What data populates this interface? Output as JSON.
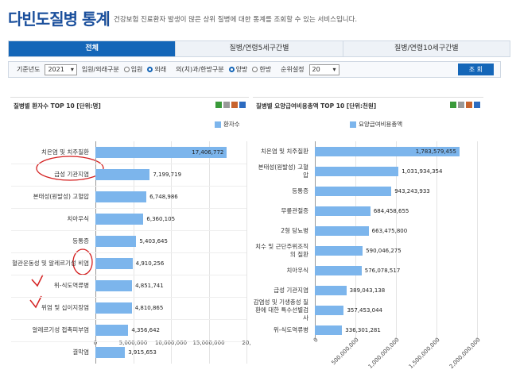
{
  "header": {
    "title": "다빈도질병 통계",
    "description": "건강보험 진료환자 발생이 많은 상위 질병에 대한 통계를 조회할 수 있는 서비스입니다."
  },
  "tabs": [
    "전체",
    "질병/연령5세구간별",
    "질병/연령10세구간별"
  ],
  "filters": {
    "year_label": "기준년도",
    "year": "2021",
    "visit_label": "입원/외래구분",
    "visit_options": [
      "입원",
      "외래"
    ],
    "medical_label": "의(치)과/한방구분",
    "medical_options": [
      "양방",
      "한방"
    ],
    "rank_label": "순위설정",
    "rank": "20",
    "search_button": "조 회"
  },
  "chart_data": [
    {
      "type": "bar",
      "horizontal": true,
      "title": "질병별 환자수 TOP 10 [단위:명]",
      "categories": [
        "치은염 및 치주질환",
        "급성 기관지염",
        "본태성(원발성) 고혈압",
        "치아우식",
        "등통증",
        "혈관운동성 및 알레르기성 비염",
        "위-식도역류병",
        "위염 및 십이지장염",
        "알레르기성 접촉피부염",
        "결막염"
      ],
      "series": [
        {
          "name": "환자수",
          "color": "#7cb5ec",
          "values": [
            17406772,
            7199719,
            6748986,
            6360105,
            5403645,
            4910256,
            4851741,
            4810865,
            4356642,
            3915653
          ],
          "value_labels": [
            "17,406,772",
            "7,199,719",
            "6,748,986",
            "6,360,105",
            "5,403,645",
            "4,910,256",
            "4,851,741",
            "4,810,865",
            "4,356,642",
            "3,915,653"
          ]
        }
      ],
      "xlim": [
        0,
        20000000
      ],
      "xticks": [
        0,
        {
          "value": 5000000,
          "label": "5,000,000"
        },
        {
          "value": 10000000,
          "label": "10,000,000"
        },
        {
          "value": 15000000,
          "label": "15,000,000"
        },
        {
          "value": 20000000,
          "label": "20,"
        }
      ],
      "rotated_ticks": false
    },
    {
      "type": "bar",
      "horizontal": true,
      "title": "질병별 요양급여비용총액 TOP 10 [단위:천원]",
      "categories": [
        "치은염 및 치주질환",
        "본태성(원발성) 고혈압",
        "등통증",
        "무릎관절증",
        "2형 당뇨병",
        "치수 및 근단주위조직의 질환",
        "치아우식",
        "급성 기관지염",
        "감염성 및 기생충성 질환에 대한 특수선별검사",
        "위-식도역류병"
      ],
      "series": [
        {
          "name": "요양급여비용총액",
          "color": "#7cb5ec",
          "values": [
            1783579455,
            1031934354,
            943243933,
            684458655,
            663475800,
            590046275,
            576078517,
            389043138,
            357453044,
            336301281
          ],
          "value_labels": [
            "1,783,579,455",
            "1,031,934,354",
            "943,243,933",
            "684,458,655",
            "663,475,800",
            "590,046,275",
            "576,078,517",
            "389,043,138",
            "357,453,044",
            "336,301,281"
          ]
        }
      ],
      "xlim": [
        0,
        2000000000
      ],
      "xticks": [
        0,
        {
          "value": 500000000,
          "label": "500,000,000"
        },
        {
          "value": 1000000000,
          "label": "1,000,000,000"
        },
        {
          "value": 1500000000,
          "label": "1,500,000,000"
        },
        {
          "value": 2000000000,
          "label": "2,000,000,000"
        }
      ],
      "rotated_ticks": true
    }
  ]
}
